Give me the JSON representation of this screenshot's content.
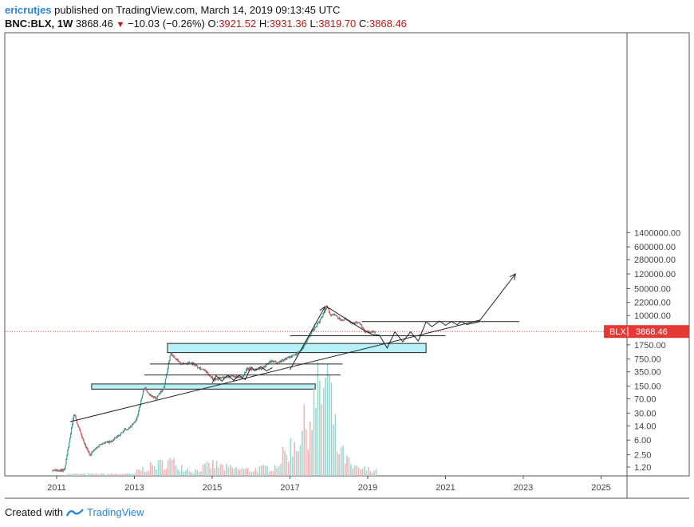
{
  "header": {
    "author": "ericrutjes",
    "published_text": " published on TradingView.com, March 14, 2019 09:13:45 UTC",
    "symbol": "BNC:BLX, 1W",
    "last": "3868.46",
    "change": "−10.03 (−0.26%)",
    "o_label": "O:",
    "o_value": "3921.52",
    "h_label": "H:",
    "h_value": "3931.36",
    "l_label": "L:",
    "l_value": "3819.70",
    "c_label": "C:",
    "c_value": "3868.46"
  },
  "footer": {
    "created_with": "Created with",
    "brand": "TradingView"
  },
  "colors": {
    "up": "#26a69a",
    "down": "#ef5350",
    "wick": "#666666",
    "zone_fill": "#b8f0f7",
    "price_line": "#e53935",
    "price_tag": "#e53935"
  },
  "chart_data": {
    "type": "candlestick",
    "y_scale": "log",
    "x_ticks": [
      "2011",
      "2013",
      "2015",
      "2017",
      "2019",
      "2021",
      "2023",
      "2025"
    ],
    "y_ticks": [
      "1400000.00",
      "600000.00",
      "280000.00",
      "120000.00",
      "50000.00",
      "22000.00",
      "10000.00",
      "3868.46",
      "1750.00",
      "750.00",
      "350.00",
      "150.00",
      "70.00",
      "30.00",
      "14.00",
      "6.00",
      "2.50",
      "1.20"
    ],
    "last_price": {
      "label": "BLX",
      "value": "3868.46"
    },
    "price_path": [
      [
        2010.9,
        1.0
      ],
      [
        2011.2,
        1.0
      ],
      [
        2011.35,
        8
      ],
      [
        2011.45,
        30
      ],
      [
        2011.55,
        14
      ],
      [
        2011.7,
        5
      ],
      [
        2011.85,
        2.5
      ],
      [
        2011.95,
        3.2
      ],
      [
        2012.15,
        5
      ],
      [
        2012.4,
        5.5
      ],
      [
        2012.6,
        8
      ],
      [
        2012.75,
        11
      ],
      [
        2012.9,
        13
      ],
      [
        2013.05,
        20
      ],
      [
        2013.25,
        140
      ],
      [
        2013.4,
        90
      ],
      [
        2013.55,
        70
      ],
      [
        2013.75,
        130
      ],
      [
        2013.85,
        400
      ],
      [
        2013.93,
        1100
      ],
      [
        2014.05,
        800
      ],
      [
        2014.2,
        550
      ],
      [
        2014.45,
        620
      ],
      [
        2014.6,
        500
      ],
      [
        2014.8,
        380
      ],
      [
        2015.05,
        220
      ],
      [
        2015.25,
        250
      ],
      [
        2015.5,
        270
      ],
      [
        2015.75,
        240
      ],
      [
        2015.9,
        420
      ],
      [
        2016.1,
        400
      ],
      [
        2016.3,
        450
      ],
      [
        2016.5,
        650
      ],
      [
        2016.7,
        620
      ],
      [
        2016.9,
        780
      ],
      [
        2017.15,
        1000
      ],
      [
        2017.3,
        1300
      ],
      [
        2017.45,
        2500
      ],
      [
        2017.6,
        4200
      ],
      [
        2017.75,
        7000
      ],
      [
        2017.85,
        11000
      ],
      [
        2017.95,
        17500
      ],
      [
        2018.05,
        10000
      ],
      [
        2018.15,
        11000
      ],
      [
        2018.3,
        7500
      ],
      [
        2018.45,
        8200
      ],
      [
        2018.6,
        6500
      ],
      [
        2018.8,
        6400
      ],
      [
        2018.9,
        4000
      ],
      [
        2019.0,
        3700
      ],
      [
        2019.2,
        3868
      ]
    ],
    "volume_path": [
      [
        2013.0,
        0.05
      ],
      [
        2013.9,
        0.15
      ],
      [
        2014.5,
        0.05
      ],
      [
        2015.0,
        0.12
      ],
      [
        2015.4,
        0.08
      ],
      [
        2016.0,
        0.06
      ],
      [
        2016.6,
        0.1
      ],
      [
        2017.3,
        0.45
      ],
      [
        2017.8,
        0.9
      ],
      [
        2017.95,
        1.0
      ],
      [
        2018.2,
        0.3
      ],
      [
        2018.6,
        0.08
      ],
      [
        2019.2,
        0.06
      ]
    ],
    "zones": [
      {
        "x1": 2013.85,
        "x2": 2020.5,
        "y1": 1100,
        "y2": 1900
      },
      {
        "x1": 2011.9,
        "x2": 2017.65,
        "y1": 125,
        "y2": 170
      }
    ],
    "hlines": [
      {
        "x1": 2013.25,
        "x2": 2018.3,
        "y": 290
      },
      {
        "x1": 2013.4,
        "x2": 2018.35,
        "y": 560
      },
      {
        "x1": 2017.0,
        "x2": 2021.0,
        "y": 3000
      },
      {
        "x1": 2018.85,
        "x2": 2022.9,
        "y": 7000
      }
    ],
    "trendline": [
      [
        2011.35,
        18
      ],
      [
        2021.9,
        7700
      ]
    ],
    "projection": [
      [
        2017.0,
        400
      ],
      [
        2017.9,
        17000
      ],
      [
        2017.95,
        17000
      ],
      [
        2018.85,
        4500
      ],
      [
        2019.1,
        3300
      ],
      [
        2019.3,
        3100
      ],
      [
        2019.5,
        1450
      ],
      [
        2019.7,
        3800
      ],
      [
        2019.9,
        2100
      ],
      [
        2020.1,
        3800
      ],
      [
        2020.3,
        2200
      ],
      [
        2020.5,
        6900
      ],
      [
        2020.65,
        5200
      ],
      [
        2020.85,
        7200
      ],
      [
        2021.0,
        5600
      ],
      [
        2021.15,
        7000
      ],
      [
        2021.3,
        5800
      ],
      [
        2021.4,
        7000
      ],
      [
        2021.55,
        5900
      ],
      [
        2021.85,
        6800
      ],
      [
        2022.8,
        120000
      ]
    ],
    "small_swings": [
      [
        2015.0,
        180
      ],
      [
        2015.1,
        280
      ],
      [
        2015.25,
        200
      ],
      [
        2015.4,
        290
      ],
      [
        2015.55,
        210
      ],
      [
        2015.7,
        285
      ],
      [
        2015.85,
        220
      ],
      [
        2016.0,
        470
      ],
      [
        2016.1,
        380
      ],
      [
        2016.25,
        480
      ],
      [
        2016.4,
        370
      ],
      [
        2016.55,
        450
      ]
    ],
    "arrow_heads": [
      [
        2022.8,
        120000
      ],
      [
        2017.9,
        17000
      ]
    ]
  }
}
